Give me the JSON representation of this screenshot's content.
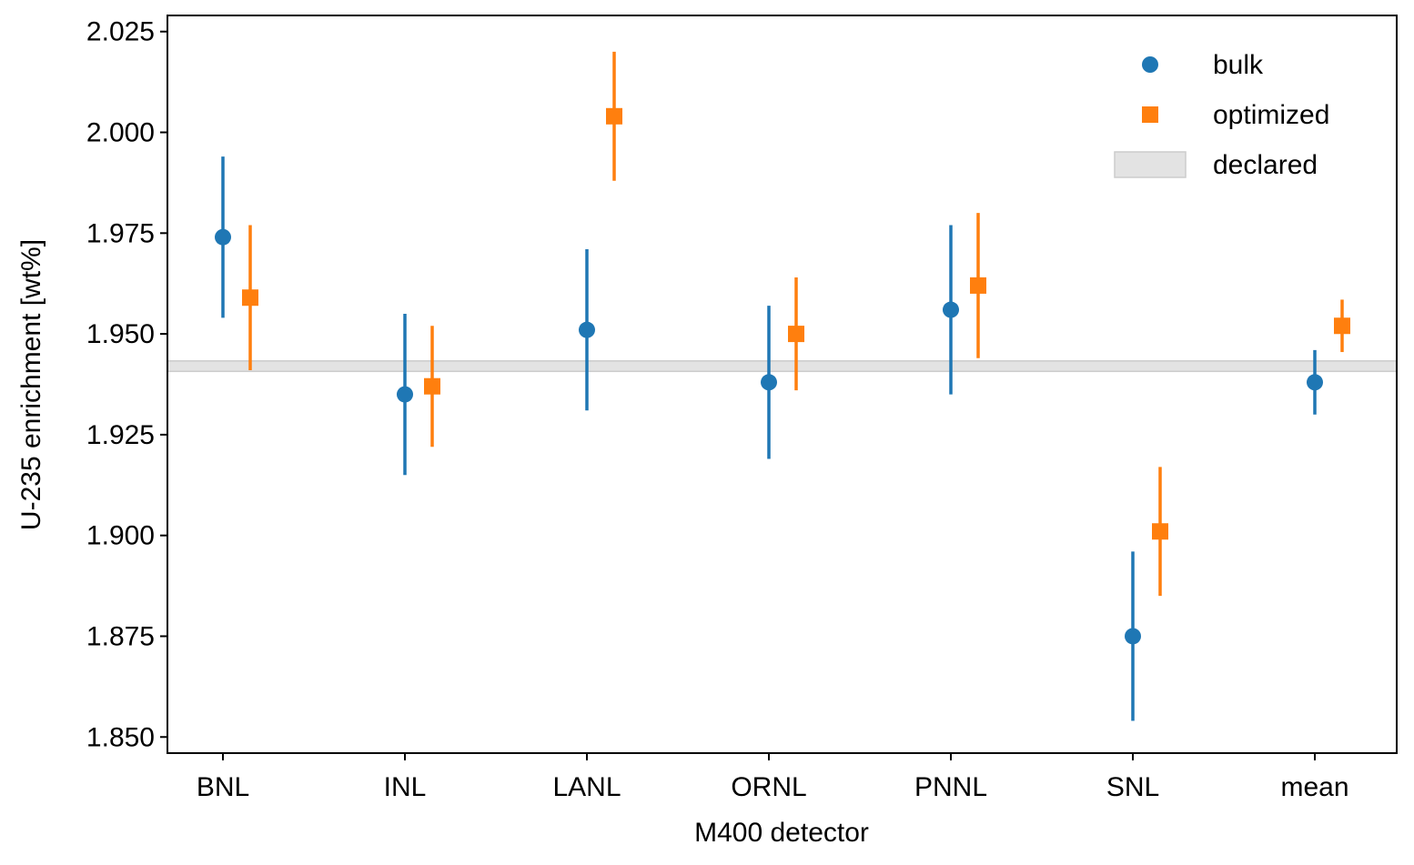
{
  "chart_data": {
    "type": "scatter",
    "xlabel": "M400 detector",
    "ylabel": "U-235 enrichment [wt%]",
    "categories": [
      "BNL",
      "INL",
      "LANL",
      "ORNL",
      "PNNL",
      "SNL",
      "mean"
    ],
    "ylim": [
      1.846,
      2.029
    ],
    "yticks": [
      "1.850",
      "1.875",
      "1.900",
      "1.925",
      "1.950",
      "1.975",
      "2.000",
      "2.025"
    ],
    "grid": false,
    "legend_position": "top-right",
    "series": [
      {
        "name": "bulk",
        "marker": "circle",
        "color": "#1f77b4",
        "values": [
          1.974,
          1.935,
          1.951,
          1.938,
          1.956,
          1.875,
          1.938
        ],
        "errors": [
          0.02,
          0.02,
          0.02,
          0.019,
          0.021,
          0.021,
          0.008
        ]
      },
      {
        "name": "optimized",
        "marker": "square",
        "color": "#ff7f0e",
        "values": [
          1.959,
          1.937,
          2.004,
          1.95,
          1.962,
          1.901,
          1.952
        ],
        "errors": [
          0.018,
          0.015,
          0.016,
          0.014,
          0.018,
          0.016,
          0.0065
        ]
      }
    ],
    "declared_band": {
      "name": "declared",
      "color": "#e3e3e3",
      "range": [
        1.9407,
        1.9433
      ]
    }
  }
}
